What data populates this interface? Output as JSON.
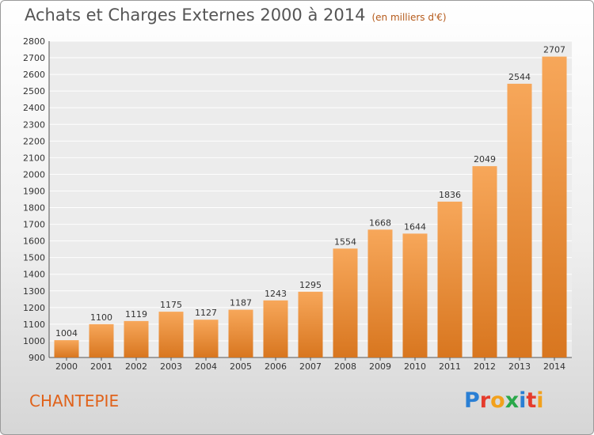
{
  "header": {
    "title": "Achats et Charges Externes 2000 à 2014",
    "subtitle": "(en milliers d'€)"
  },
  "footer": {
    "location": "CHANTEPIE",
    "brand": "Proxiti"
  },
  "colors": {
    "bar_light": "#f7a75a",
    "bar_dark": "#d8761f",
    "title": "#555555",
    "location": "#e0621a"
  },
  "chart_data": {
    "type": "bar",
    "title": "Achats et Charges Externes 2000 à 2014",
    "subtitle": "(en milliers d'€)",
    "xlabel": "",
    "ylabel": "",
    "categories": [
      "2000",
      "2001",
      "2002",
      "2003",
      "2004",
      "2005",
      "2006",
      "2007",
      "2008",
      "2009",
      "2010",
      "2011",
      "2012",
      "2013",
      "2014"
    ],
    "values": [
      1004,
      1100,
      1119,
      1175,
      1127,
      1187,
      1243,
      1295,
      1554,
      1668,
      1644,
      1836,
      2049,
      2544,
      2707
    ],
    "ylim": [
      900,
      2800
    ],
    "yticks": [
      900,
      1000,
      1100,
      1200,
      1300,
      1400,
      1500,
      1600,
      1700,
      1800,
      1900,
      2000,
      2100,
      2200,
      2300,
      2400,
      2500,
      2600,
      2700,
      2800
    ],
    "grid": true,
    "legend": "none",
    "data_labels": true
  }
}
